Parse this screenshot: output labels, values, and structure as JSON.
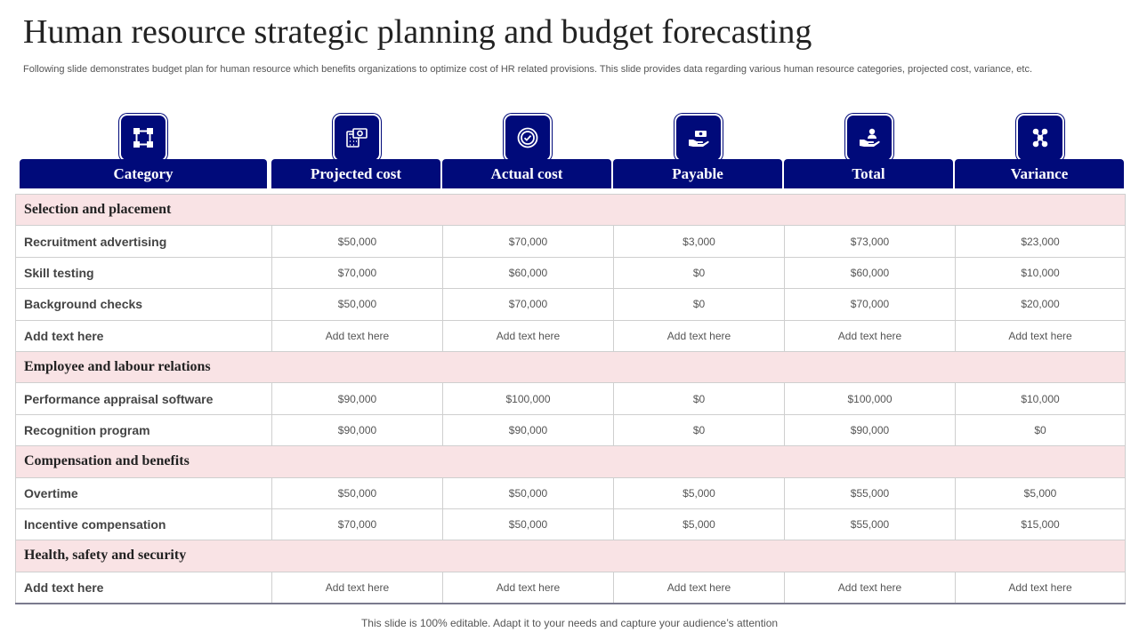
{
  "title": "Human resource strategic planning and budget forecasting",
  "subtitle": "Following slide demonstrates budget plan for human resource which benefits organizations to optimize cost of HR related provisions. This slide provides data regarding various human resource categories, projected cost, variance, etc.",
  "columns": [
    "Category",
    "Projected cost",
    "Actual cost",
    "Payable",
    "Total",
    "Variance"
  ],
  "column_icons": [
    "network-nodes-icon",
    "calculator-money-icon",
    "check-badge-icon",
    "hand-payment-icon",
    "hand-person-icon",
    "molecule-icon"
  ],
  "accent_color": "#000a7a",
  "section_color": "#f9e3e5",
  "sections": [
    {
      "name": "Selection and placement",
      "rows": [
        [
          "Recruitment advertising",
          "$50,000",
          "$70,000",
          "$3,000",
          "$73,000",
          "$23,000"
        ],
        [
          "Skill testing",
          "$70,000",
          "$60,000",
          "$0",
          "$60,000",
          "$10,000"
        ],
        [
          "Background checks",
          "$50,000",
          "$70,000",
          "$0",
          "$70,000",
          "$20,000"
        ],
        [
          "Add  text here",
          "Add text here",
          "Add text here",
          "Add text here",
          "Add text here",
          "Add text here"
        ]
      ]
    },
    {
      "name": "Employee and labour relations",
      "rows": [
        [
          "Performance appraisal software",
          "$90,000",
          "$100,000",
          "$0",
          "$100,000",
          "$10,000"
        ],
        [
          "Recognition program",
          "$90,000",
          "$90,000",
          "$0",
          "$90,000",
          "$0"
        ]
      ]
    },
    {
      "name": "Compensation and benefits",
      "rows": [
        [
          "Overtime",
          "$50,000",
          "$50,000",
          "$5,000",
          "$55,000",
          "$5,000"
        ],
        [
          "Incentive compensation",
          "$70,000",
          "$50,000",
          "$5,000",
          "$55,000",
          "$15,000"
        ]
      ]
    },
    {
      "name": "Health, safety and security",
      "rows": [
        [
          "Add  text here",
          "Add text here",
          "Add text here",
          "Add text here",
          "Add text here",
          "Add text here"
        ]
      ]
    }
  ],
  "footer": "This slide is 100% editable. Adapt it to your needs and capture your audience’s attention"
}
